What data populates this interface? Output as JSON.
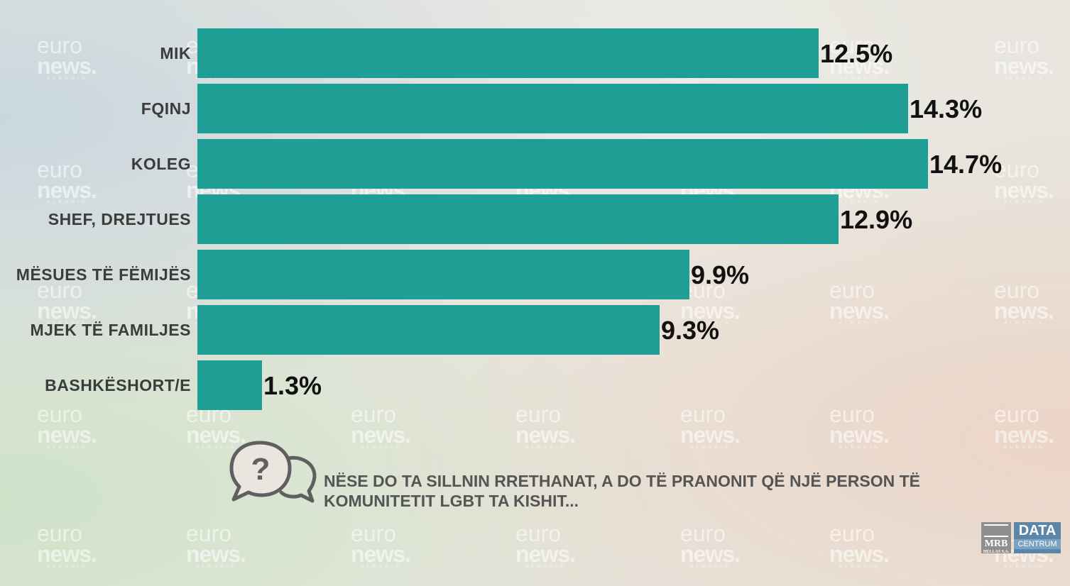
{
  "chart_data": {
    "type": "bar",
    "orientation": "horizontal",
    "categories": [
      "MIK",
      "FQINJ",
      "KOLEG",
      "SHEF, DREJTUES",
      "MËSUES TË FËMIJËS",
      "MJEK TË FAMILJES",
      "BASHKËSHORT/E"
    ],
    "values": [
      12.5,
      14.3,
      14.7,
      12.9,
      9.9,
      9.3,
      1.3
    ],
    "value_labels": [
      "12.5%",
      "14.3%",
      "14.7%",
      "12.9%",
      "9.9%",
      "9.3%",
      "1.3%"
    ],
    "bar_color": "#1f9e96",
    "xlim": [
      0,
      14.7
    ],
    "grid": false,
    "legend": "none"
  },
  "question": {
    "icon": "speech-bubbles-question-icon",
    "text": "NËSE DO TA SILLNIN RRETHANAT, A DO TË PRANONIT QË NJË PERSON TË KOMUNITETIT LGBT TA KISHIT..."
  },
  "watermark": {
    "line1": "euro",
    "line2": "news.",
    "line3": "ALBANIA"
  },
  "logos": {
    "mrb": "MRB",
    "mrb_sub": "HELLAS S.A.",
    "data_top": "DATA",
    "data_bottom": "CENTRUM"
  }
}
